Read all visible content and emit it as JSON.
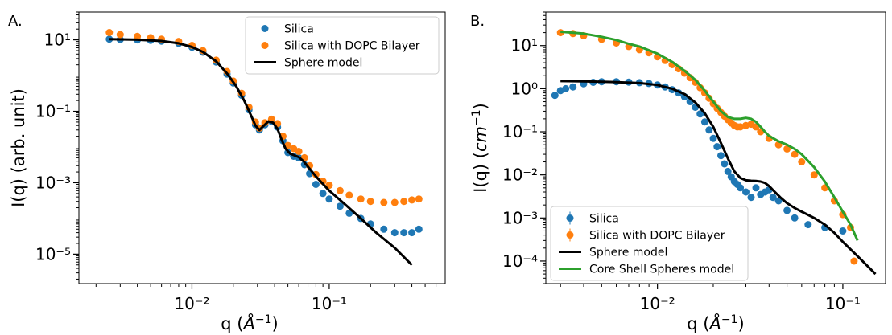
{
  "chart_data": [
    {
      "panel_label": "A.",
      "type": "scatter",
      "xlabel": "q (Å⁻¹)",
      "ylabel": "I(q) (arb. unit)",
      "x_scale": "log",
      "y_scale": "log",
      "xlim": [
        0.0015,
        0.7
      ],
      "ylim": [
        1.5e-06,
        60
      ],
      "x_ticks": [
        {
          "value": 0.01,
          "label": "10⁻²"
        },
        {
          "value": 0.1,
          "label": "10⁻¹"
        }
      ],
      "y_ticks": [
        {
          "value": 10,
          "label": "10¹"
        },
        {
          "value": 0.1,
          "label": "10⁻¹"
        },
        {
          "value": 0.001,
          "label": "10⁻³"
        },
        {
          "value": 1e-05,
          "label": "10⁻⁵"
        }
      ],
      "legend": "top-right",
      "series": [
        {
          "name": "Silica",
          "kind": "points",
          "color": "#1f77b4",
          "x": [
            0.0025,
            0.003,
            0.004,
            0.005,
            0.006,
            0.008,
            0.01,
            0.012,
            0.015,
            0.018,
            0.02,
            0.023,
            0.026,
            0.029,
            0.031,
            0.034,
            0.038,
            0.042,
            0.046,
            0.05,
            0.055,
            0.06,
            0.066,
            0.072,
            0.08,
            0.09,
            0.1,
            0.12,
            0.14,
            0.17,
            0.2,
            0.25,
            0.3,
            0.35,
            0.4,
            0.45
          ],
          "y": [
            10.5,
            10.2,
            10,
            9.7,
            9.2,
            8,
            6.2,
            4.5,
            2.4,
            1.1,
            0.62,
            0.28,
            0.11,
            0.042,
            0.03,
            0.042,
            0.052,
            0.036,
            0.015,
            0.007,
            0.0055,
            0.005,
            0.0032,
            0.0018,
            0.0009,
            0.0005,
            0.00035,
            0.00022,
            0.00014,
            0.0001,
            7e-05,
            5e-05,
            4e-05,
            4e-05,
            4e-05,
            5e-05
          ]
        },
        {
          "name": "Silica with DOPC Bilayer",
          "kind": "points",
          "color": "#ff7f0e",
          "x": [
            0.0025,
            0.003,
            0.004,
            0.005,
            0.006,
            0.008,
            0.01,
            0.012,
            0.015,
            0.018,
            0.02,
            0.023,
            0.026,
            0.029,
            0.031,
            0.034,
            0.038,
            0.042,
            0.046,
            0.05,
            0.055,
            0.06,
            0.066,
            0.072,
            0.08,
            0.09,
            0.1,
            0.12,
            0.14,
            0.17,
            0.2,
            0.25,
            0.3,
            0.35,
            0.4,
            0.45
          ],
          "y": [
            16,
            14,
            12.5,
            11.5,
            10.5,
            9,
            7,
            5,
            2.7,
            1.3,
            0.7,
            0.32,
            0.13,
            0.05,
            0.034,
            0.048,
            0.06,
            0.045,
            0.02,
            0.011,
            0.009,
            0.0075,
            0.005,
            0.003,
            0.0017,
            0.0011,
            0.00085,
            0.0006,
            0.00045,
            0.00035,
            0.0003,
            0.00028,
            0.00028,
            0.0003,
            0.00033,
            0.00035
          ]
        },
        {
          "name": "Sphere model",
          "kind": "line",
          "color": "#000000",
          "x": [
            0.0025,
            0.004,
            0.006,
            0.008,
            0.01,
            0.012,
            0.015,
            0.018,
            0.021,
            0.024,
            0.027,
            0.029,
            0.031,
            0.033,
            0.036,
            0.039,
            0.042,
            0.045,
            0.048,
            0.052,
            0.056,
            0.06,
            0.065,
            0.07,
            0.08,
            0.1,
            0.13,
            0.17,
            0.22,
            0.3,
            0.4
          ],
          "y": [
            10.5,
            10.1,
            9.3,
            8,
            6.3,
            4.6,
            2.5,
            1.15,
            0.5,
            0.2,
            0.075,
            0.04,
            0.03,
            0.038,
            0.052,
            0.048,
            0.032,
            0.016,
            0.009,
            0.0065,
            0.0058,
            0.0052,
            0.004,
            0.0028,
            0.0015,
            0.0006,
            0.00025,
            0.0001,
            4e-05,
            1.5e-05,
            5e-06
          ]
        }
      ]
    },
    {
      "panel_label": "B.",
      "type": "scatter",
      "xlabel": "q (Å⁻¹)",
      "ylabel": "I(q) (cm⁻¹)",
      "x_scale": "log",
      "y_scale": "log",
      "xlim": [
        0.0025,
        0.17
      ],
      "ylim": [
        3e-05,
        60
      ],
      "x_ticks": [
        {
          "value": 0.01,
          "label": "10⁻²"
        },
        {
          "value": 0.1,
          "label": "10⁻¹"
        }
      ],
      "y_ticks": [
        {
          "value": 10,
          "label": "10¹"
        },
        {
          "value": 1,
          "label": "10⁰"
        },
        {
          "value": 0.1,
          "label": "10⁻¹"
        },
        {
          "value": 0.01,
          "label": "10⁻²"
        },
        {
          "value": 0.001,
          "label": "10⁻³"
        },
        {
          "value": 0.0001,
          "label": "10⁻⁴"
        }
      ],
      "legend": "bottom-left",
      "series": [
        {
          "name": "Silica",
          "kind": "errorbar-points",
          "color": "#1f77b4",
          "x": [
            0.0028,
            0.003,
            0.0032,
            0.0035,
            0.004,
            0.0045,
            0.005,
            0.006,
            0.007,
            0.008,
            0.009,
            0.01,
            0.011,
            0.012,
            0.013,
            0.014,
            0.015,
            0.016,
            0.017,
            0.018,
            0.019,
            0.02,
            0.021,
            0.022,
            0.023,
            0.024,
            0.025,
            0.026,
            0.027,
            0.028,
            0.03,
            0.032,
            0.034,
            0.036,
            0.038,
            0.04,
            0.042,
            0.045,
            0.05,
            0.055,
            0.065,
            0.08,
            0.1
          ],
          "y": [
            0.7,
            0.9,
            1,
            1.1,
            1.3,
            1.4,
            1.45,
            1.45,
            1.42,
            1.38,
            1.32,
            1.22,
            1.1,
            0.95,
            0.8,
            0.65,
            0.5,
            0.37,
            0.26,
            0.17,
            0.11,
            0.07,
            0.045,
            0.028,
            0.018,
            0.012,
            0.009,
            0.007,
            0.006,
            0.005,
            0.004,
            0.003,
            0.005,
            0.0035,
            0.004,
            0.0045,
            0.003,
            0.0025,
            0.0015,
            0.001,
            0.0007,
            0.0006,
            0.0005
          ]
        },
        {
          "name": "Silica with DOPC Bilayer",
          "kind": "errorbar-points",
          "color": "#ff7f0e",
          "x": [
            0.003,
            0.0035,
            0.004,
            0.005,
            0.006,
            0.007,
            0.008,
            0.009,
            0.01,
            0.011,
            0.012,
            0.013,
            0.014,
            0.015,
            0.016,
            0.017,
            0.018,
            0.019,
            0.02,
            0.021,
            0.022,
            0.023,
            0.024,
            0.025,
            0.026,
            0.027,
            0.028,
            0.03,
            0.032,
            0.034,
            0.036,
            0.04,
            0.045,
            0.05,
            0.055,
            0.06,
            0.07,
            0.08,
            0.09,
            0.1,
            0.11,
            0.115
          ],
          "y": [
            20,
            19,
            17,
            14,
            11.5,
            9.5,
            8,
            6.8,
            5.5,
            4.5,
            3.6,
            2.9,
            2.3,
            1.8,
            1.4,
            1.05,
            0.8,
            0.6,
            0.45,
            0.35,
            0.28,
            0.23,
            0.19,
            0.16,
            0.14,
            0.13,
            0.13,
            0.14,
            0.15,
            0.13,
            0.1,
            0.07,
            0.05,
            0.04,
            0.03,
            0.02,
            0.01,
            0.005,
            0.0025,
            0.0012,
            0.0006,
            0.0001
          ]
        },
        {
          "name": "Sphere model",
          "kind": "line",
          "color": "#000000",
          "x": [
            0.003,
            0.004,
            0.005,
            0.006,
            0.008,
            0.01,
            0.012,
            0.014,
            0.016,
            0.018,
            0.02,
            0.022,
            0.024,
            0.026,
            0.028,
            0.03,
            0.032,
            0.034,
            0.036,
            0.038,
            0.04,
            0.043,
            0.046,
            0.05,
            0.055,
            0.06,
            0.07,
            0.08,
            0.09,
            0.1,
            0.12,
            0.15
          ],
          "y": [
            1.5,
            1.48,
            1.45,
            1.42,
            1.35,
            1.22,
            1.0,
            0.75,
            0.48,
            0.27,
            0.13,
            0.055,
            0.024,
            0.012,
            0.0085,
            0.0075,
            0.0073,
            0.0072,
            0.007,
            0.0065,
            0.0055,
            0.004,
            0.003,
            0.0022,
            0.0017,
            0.0014,
            0.001,
            0.0007,
            0.00045,
            0.00028,
            0.00013,
            5e-05
          ]
        },
        {
          "name": "Core Shell Spheres model",
          "kind": "line",
          "color": "#2ca02c",
          "x": [
            0.003,
            0.004,
            0.005,
            0.006,
            0.007,
            0.008,
            0.01,
            0.012,
            0.014,
            0.016,
            0.018,
            0.02,
            0.022,
            0.024,
            0.026,
            0.028,
            0.03,
            0.032,
            0.034,
            0.036,
            0.038,
            0.04,
            0.045,
            0.05,
            0.055,
            0.06,
            0.07,
            0.08,
            0.09,
            0.1,
            0.11,
            0.12
          ],
          "y": [
            21,
            19,
            16,
            13.5,
            11,
            9.5,
            6.5,
            4.2,
            2.6,
            1.6,
            0.9,
            0.5,
            0.3,
            0.22,
            0.2,
            0.2,
            0.21,
            0.2,
            0.17,
            0.13,
            0.1,
            0.08,
            0.06,
            0.05,
            0.04,
            0.03,
            0.015,
            0.007,
            0.003,
            0.0014,
            0.0007,
            0.0003
          ]
        }
      ]
    }
  ]
}
